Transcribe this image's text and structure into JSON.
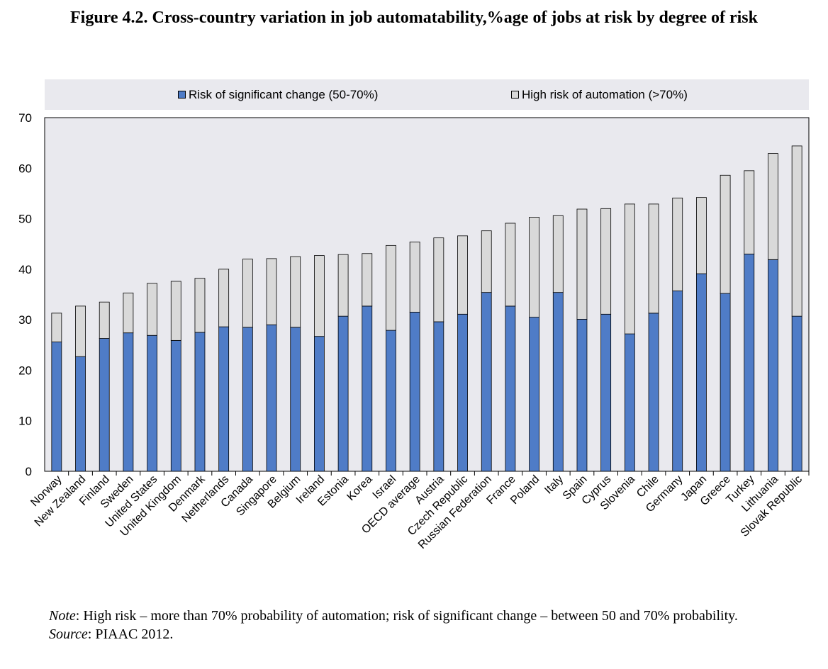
{
  "header": {
    "title": "Figure 4.2. Cross-country variation in job automatability,%age of jobs at risk by degree of risk"
  },
  "legend": {
    "items": [
      {
        "label": "Risk of significant change (50-70%)",
        "color": "#4f7cc7"
      },
      {
        "label": "High risk of automation (>70%)",
        "color": "#d9d9d9"
      }
    ]
  },
  "footer": {
    "note_label": "Note",
    "note_text": ": High risk – more than 70% probability of automation; risk of significant change – between 50 and 70% probability.",
    "source_label": "Source",
    "source_text": ": PIAAC 2012."
  },
  "chart_data": {
    "type": "bar",
    "stacked": true,
    "ylim": [
      0,
      70
    ],
    "yticks": [
      "0",
      "10",
      "20",
      "30",
      "40",
      "50",
      "60",
      "70"
    ],
    "grid": false,
    "legend_position": "top",
    "categories": [
      "Norway",
      "New Zealand",
      "Finland",
      "Sweden",
      "United States",
      "United Kingdom",
      "Denmark",
      "Netherlands",
      "Canada",
      "Singapore",
      "Belgium",
      "Ireland",
      "Estonia",
      "Korea",
      "Israel",
      "OECD average",
      "Austria",
      "Czech Republic",
      "Russian Federation",
      "France",
      "Poland",
      "Italy",
      "Spain",
      "Cyprus",
      "Slovenia",
      "Chile",
      "Germany",
      "Japan",
      "Greece",
      "Turkey",
      "Lithuania",
      "Slovak Republic"
    ],
    "series": [
      {
        "name": "Risk of significant change (50-70%)",
        "color": "#4f7cc7",
        "values": [
          25.6,
          22.7,
          26.3,
          27.4,
          26.9,
          25.9,
          27.5,
          28.6,
          28.5,
          29.0,
          28.5,
          26.7,
          30.7,
          32.7,
          27.9,
          31.5,
          29.6,
          31.1,
          35.4,
          32.7,
          30.5,
          35.4,
          30.1,
          31.1,
          27.2,
          31.3,
          35.7,
          39.1,
          35.2,
          43.0,
          41.9,
          30.7
        ]
      },
      {
        "name": "High risk of automation (>70%)",
        "color": "#d9d9d9",
        "values": [
          5.7,
          10.0,
          7.2,
          7.9,
          10.3,
          11.7,
          10.7,
          11.4,
          13.5,
          13.1,
          14.0,
          16.0,
          12.2,
          10.4,
          16.8,
          13.9,
          16.6,
          15.5,
          12.2,
          16.4,
          19.8,
          15.2,
          21.8,
          20.9,
          25.7,
          21.6,
          18.4,
          15.1,
          23.4,
          16.5,
          21.0,
          33.7
        ]
      }
    ]
  }
}
